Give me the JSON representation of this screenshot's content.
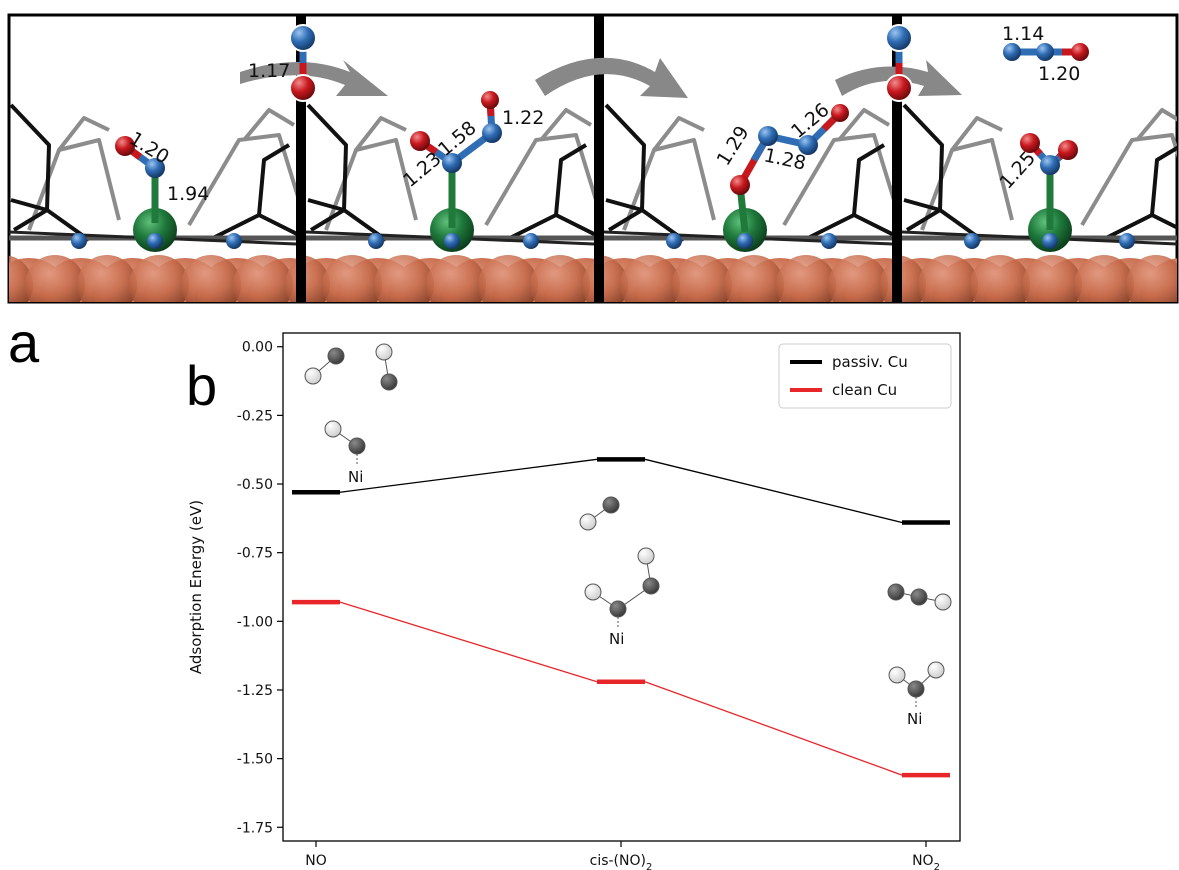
{
  "panel_labels": {
    "a": "a",
    "b": "b"
  },
  "structures": {
    "snapshot1": {
      "no_bond": "1.20",
      "ni_n_bond": "1.94"
    },
    "incoming_no": "1.17",
    "snapshot2": {
      "nn_bond": "1.58",
      "no_bond_a": "1.23",
      "no_bond_b": "1.22"
    },
    "snapshot3": {
      "ni_o_no_bond": "1.29",
      "nn_bond": "1.28",
      "no_bond": "1.26"
    },
    "n2o_product": {
      "nn_bond": "1.14",
      "no_bond": "1.20"
    },
    "snapshot4": {
      "no_bond": "1.25"
    }
  },
  "colors": {
    "passivated": "#000000",
    "clean": "#e8262a",
    "nitrogen": "#2f6db5",
    "oxygen": "#c8181e",
    "nickel": "#1f7a3c",
    "copper": "#c66a4a"
  },
  "inset_labels": {
    "ni": "Ni"
  },
  "chart_data": {
    "type": "line",
    "ylabel": "Adsorption Energy (eV)",
    "categories": [
      "NO",
      "cis-(NO)2",
      "NO2"
    ],
    "tick_labels": [
      {
        "base": "NO",
        "sub": "",
        "tail": ""
      },
      {
        "base": "cis-(NO)",
        "sub": "2",
        "tail": ""
      },
      {
        "base": "NO",
        "sub": "2",
        "tail": ""
      }
    ],
    "ylim": [
      -1.8,
      0.05
    ],
    "yticks": [
      "0.00",
      "-0.25",
      "-0.50",
      "-0.75",
      "-1.00",
      "-1.25",
      "-1.50",
      "-1.75"
    ],
    "ytick_values": [
      0,
      -0.25,
      -0.5,
      -0.75,
      -1.0,
      -1.25,
      -1.5,
      -1.75
    ],
    "legend_position": "top-right",
    "series": [
      {
        "name": "passiv. Cu",
        "color": "#000000",
        "values": [
          -0.53,
          -0.41,
          -0.64
        ]
      },
      {
        "name": "clean Cu",
        "color": "#e8262a",
        "values": [
          -0.93,
          -1.22,
          -1.56
        ]
      }
    ]
  }
}
